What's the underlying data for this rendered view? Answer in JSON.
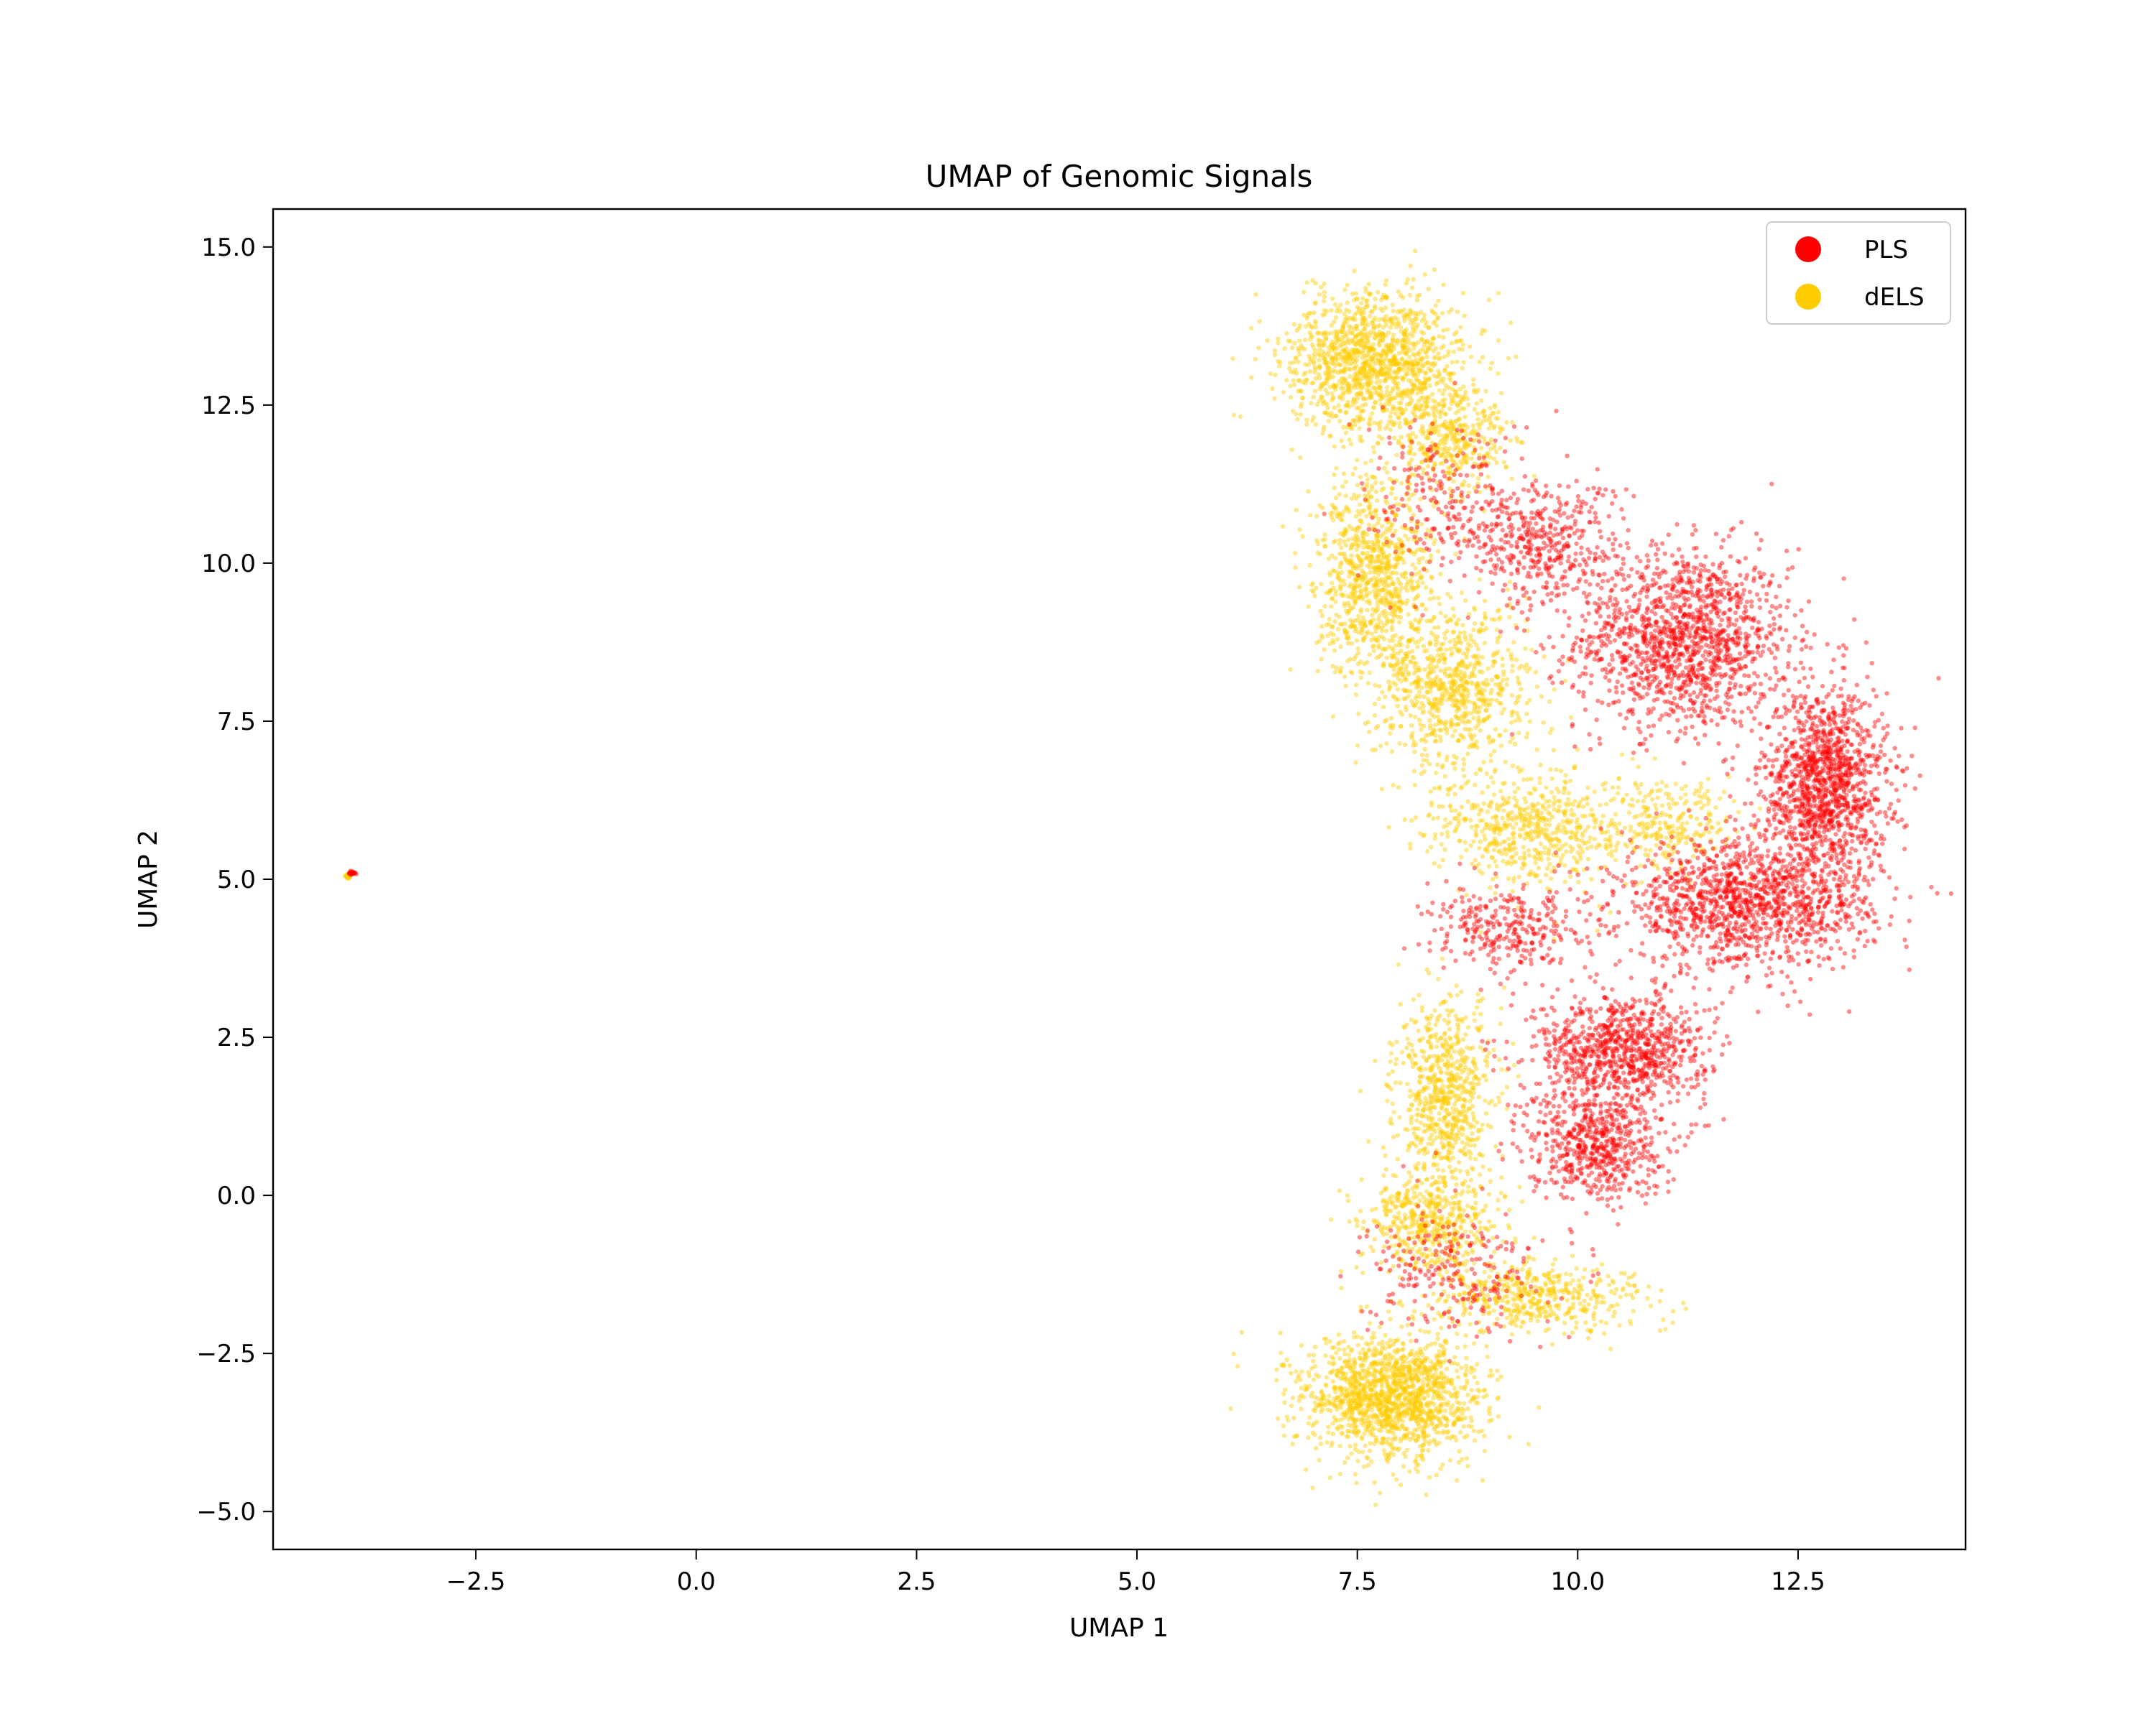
{
  "chart_data": {
    "type": "scatter",
    "title": "UMAP of Genomic Signals",
    "xlabel": "UMAP 1",
    "ylabel": "UMAP 2",
    "xlim": [
      -4.8,
      14.4
    ],
    "ylim": [
      -5.6,
      15.6
    ],
    "xticks": [
      -2.5,
      0.0,
      2.5,
      5.0,
      7.5,
      10.0,
      12.5
    ],
    "xtick_labels": [
      "−2.5",
      "0.0",
      "2.5",
      "5.0",
      "7.5",
      "10.0",
      "12.5"
    ],
    "yticks": [
      -5.0,
      -2.5,
      0.0,
      2.5,
      5.0,
      7.5,
      10.0,
      12.5,
      15.0
    ],
    "ytick_labels": [
      "−5.0",
      "−2.5",
      "0.0",
      "2.5",
      "5.0",
      "7.5",
      "10.0",
      "12.5",
      "15.0"
    ],
    "grid": false,
    "legend_position": "top-right",
    "series": [
      {
        "name": "PLS",
        "color": "#ff0000",
        "approx_regions": [
          {
            "cx": 11.2,
            "cy": 8.8,
            "rx": 1.1,
            "ry": 1.3,
            "n": 1400
          },
          {
            "cx": 12.8,
            "cy": 6.5,
            "rx": 0.65,
            "ry": 1.4,
            "n": 1300
          },
          {
            "cx": 11.9,
            "cy": 4.6,
            "rx": 1.3,
            "ry": 0.9,
            "n": 1300
          },
          {
            "cx": 10.5,
            "cy": 2.3,
            "rx": 0.9,
            "ry": 0.8,
            "n": 900
          },
          {
            "cx": 10.2,
            "cy": 0.8,
            "rx": 0.7,
            "ry": 0.8,
            "n": 600
          },
          {
            "cx": 9.6,
            "cy": 10.3,
            "rx": 0.8,
            "ry": 0.9,
            "n": 400
          },
          {
            "cx": 8.6,
            "cy": 11.0,
            "rx": 0.9,
            "ry": 1.2,
            "n": 250
          },
          {
            "cx": 8.6,
            "cy": -1.2,
            "rx": 0.9,
            "ry": 0.9,
            "n": 250
          },
          {
            "cx": 9.2,
            "cy": 4.2,
            "rx": 0.8,
            "ry": 0.6,
            "n": 300
          },
          {
            "cx": -3.9,
            "cy": 5.1,
            "rx": 0.04,
            "ry": 0.04,
            "n": 20
          }
        ]
      },
      {
        "name": "dELS",
        "color": "#ffcc00",
        "approx_regions": [
          {
            "cx": 7.7,
            "cy": 13.2,
            "rx": 0.9,
            "ry": 1.0,
            "n": 1300
          },
          {
            "cx": 7.7,
            "cy": 9.8,
            "rx": 0.6,
            "ry": 1.4,
            "n": 900
          },
          {
            "cx": 8.6,
            "cy": 8.0,
            "rx": 0.8,
            "ry": 1.2,
            "n": 800
          },
          {
            "cx": 9.5,
            "cy": 5.8,
            "rx": 1.0,
            "ry": 0.8,
            "n": 600
          },
          {
            "cx": 8.5,
            "cy": 1.6,
            "rx": 0.5,
            "ry": 1.3,
            "n": 700
          },
          {
            "cx": 8.3,
            "cy": -0.4,
            "rx": 0.7,
            "ry": 0.7,
            "n": 500
          },
          {
            "cx": 7.9,
            "cy": -3.2,
            "rx": 0.9,
            "ry": 0.9,
            "n": 1500
          },
          {
            "cx": 9.5,
            "cy": -1.6,
            "rx": 1.2,
            "ry": 0.5,
            "n": 500
          },
          {
            "cx": 8.6,
            "cy": 12.0,
            "rx": 0.6,
            "ry": 0.8,
            "n": 400
          },
          {
            "cx": 11.0,
            "cy": 5.9,
            "rx": 0.7,
            "ry": 0.6,
            "n": 250
          },
          {
            "cx": -3.95,
            "cy": 5.05,
            "rx": 0.04,
            "ry": 0.04,
            "n": 20
          }
        ]
      }
    ]
  }
}
